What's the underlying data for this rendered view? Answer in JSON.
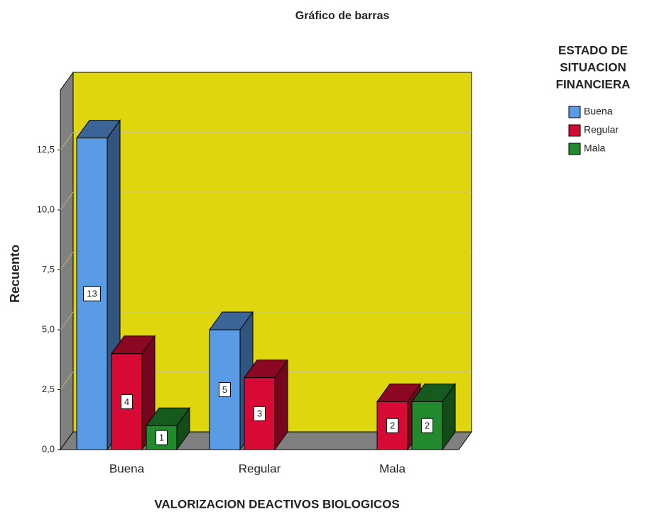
{
  "chart_data": {
    "type": "bar3d",
    "title": "Gráfico de barras",
    "x_label": "VALORIZACION DEACTIVOS BIOLOGICOS",
    "y_label": "Recuento",
    "legend_title": [
      "ESTADO DE",
      "SITUACION",
      "FINANCIERA"
    ],
    "categories": [
      "Buena",
      "Regular",
      "Mala"
    ],
    "series": [
      {
        "name": "Buena",
        "color": "#5a9be6",
        "values": [
          13,
          5,
          null
        ]
      },
      {
        "name": "Regular",
        "color": "#d60a35",
        "values": [
          4,
          3,
          2
        ]
      },
      {
        "name": "Mala",
        "color": "#228a2c",
        "values": [
          1,
          null,
          2
        ]
      }
    ],
    "ylim": [
      0,
      15
    ],
    "yticks": [
      {
        "value": 0,
        "label": "0,0"
      },
      {
        "value": 2.5,
        "label": "2,5"
      },
      {
        "value": 5,
        "label": "5,0"
      },
      {
        "value": 7.5,
        "label": "7,5"
      },
      {
        "value": 10,
        "label": "10,0"
      },
      {
        "value": 12.5,
        "label": "12,5"
      }
    ],
    "grid": true,
    "wall_color": "#e0d60e",
    "legend": "right"
  }
}
